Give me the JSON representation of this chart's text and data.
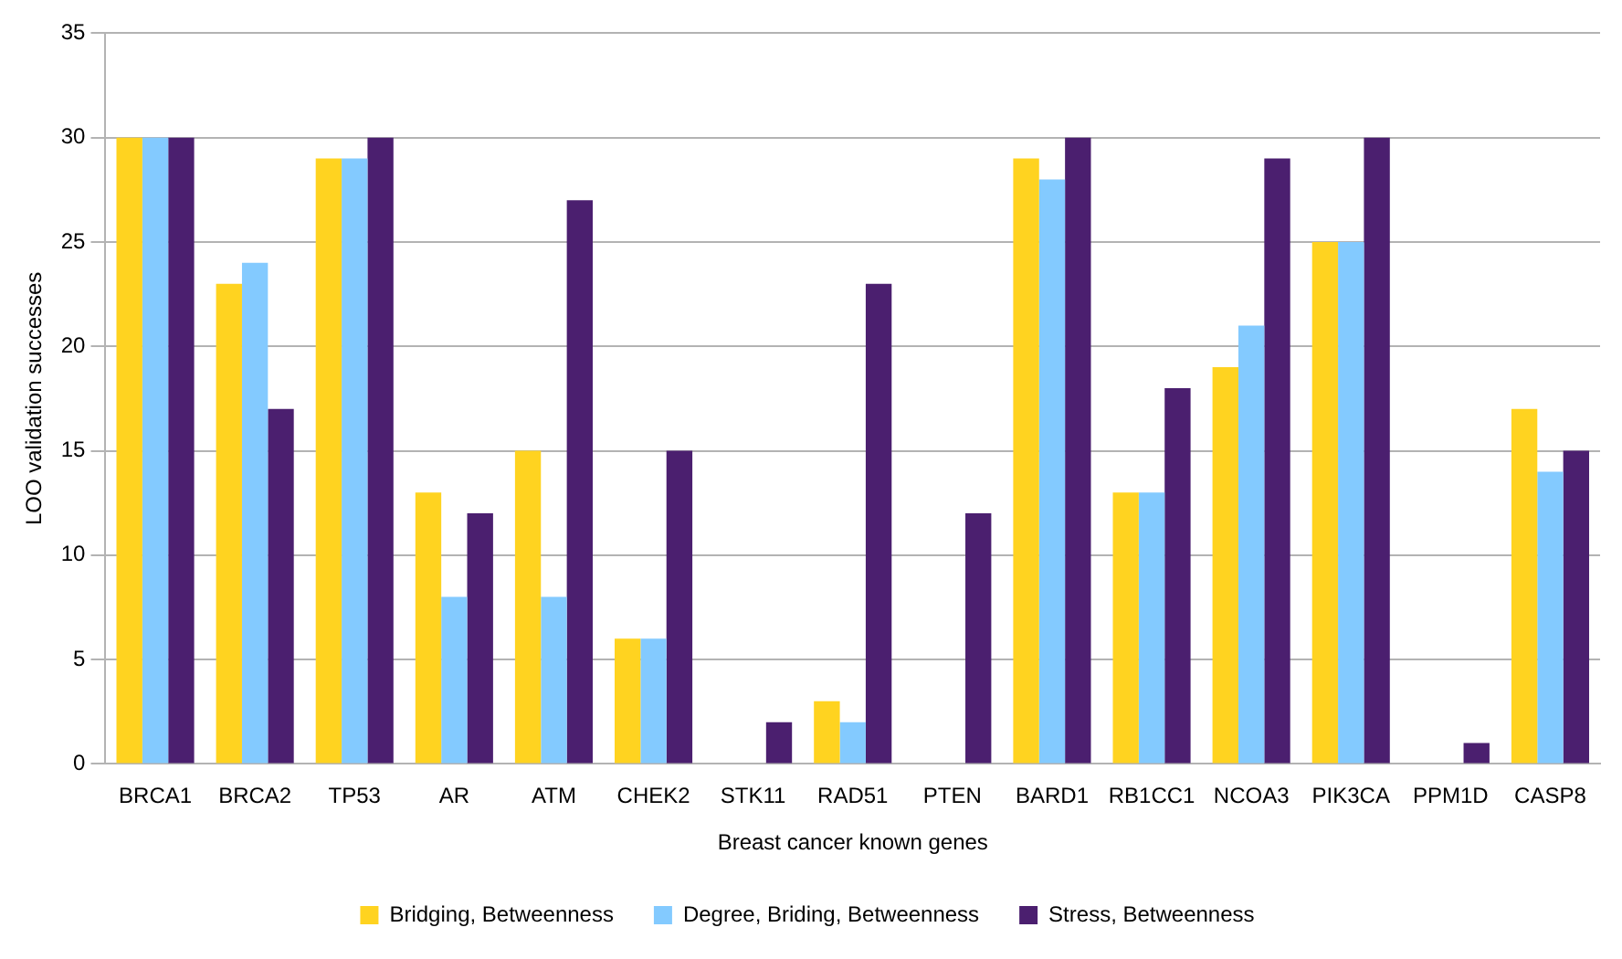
{
  "chart_data": {
    "type": "bar",
    "xlabel": "Breast cancer known genes",
    "ylabel": "LOO validation successes",
    "categories": [
      "BRCA1",
      "BRCA2",
      "TP53",
      "AR",
      "ATM",
      "CHEK2",
      "STK11",
      "RAD51",
      "PTEN",
      "BARD1",
      "RB1CC1",
      "NCOA3",
      "PIK3CA",
      "PPM1D",
      "CASP8"
    ],
    "series": [
      {
        "name": "Bridging, Betweenness",
        "color": "#ffd320",
        "values": [
          30,
          23,
          29,
          13,
          15,
          6,
          0,
          3,
          0,
          29,
          13,
          19,
          25,
          0,
          17
        ]
      },
      {
        "name": "Degree, Briding, Betweenness",
        "color": "#83caff",
        "values": [
          30,
          24,
          29,
          8,
          8,
          6,
          0,
          2,
          0,
          28,
          13,
          21,
          25,
          0,
          14
        ]
      },
      {
        "name": "Stress, Betweenness",
        "color": "#4b1f6f",
        "values": [
          30,
          17,
          30,
          12,
          27,
          15,
          2,
          23,
          12,
          30,
          18,
          29,
          30,
          1,
          15
        ]
      }
    ],
    "ylim": [
      0,
      35
    ],
    "yticks": [
      0,
      5,
      10,
      15,
      20,
      25,
      30,
      35
    ],
    "grid": "y",
    "legend": "bottom"
  }
}
